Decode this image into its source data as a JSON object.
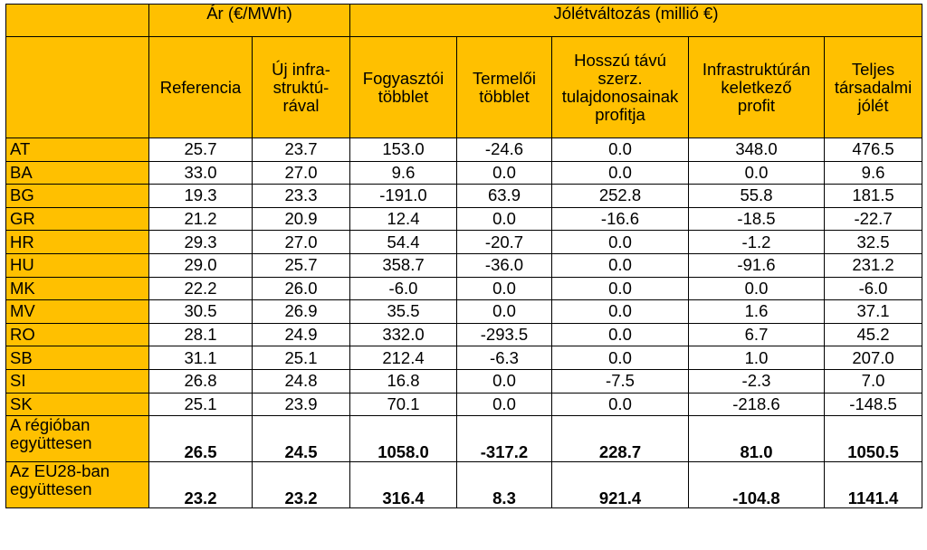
{
  "group_headers": {
    "price": "Ár (€/MWh)",
    "welfare": "Jólétváltozás (millió €)"
  },
  "column_headers": [
    "Referencia",
    "Új infra-\nstruktú-\nrával",
    "Fogyasztói\ntöbblet",
    "Termelői\ntöbblet",
    "Hosszú távú\nszerz.\ntulajdonosainak\nprofitja",
    "Infrastruktúrán\nkeletkező\nprofit",
    "Teljes\ntársadalmi\njólét"
  ],
  "rows": [
    {
      "label": "AT",
      "values": [
        "25.7",
        "23.7",
        "153.0",
        "-24.6",
        "0.0",
        "348.0",
        "476.5"
      ]
    },
    {
      "label": "BA",
      "values": [
        "33.0",
        "27.0",
        "9.6",
        "0.0",
        "0.0",
        "0.0",
        "9.6"
      ]
    },
    {
      "label": "BG",
      "values": [
        "19.3",
        "23.3",
        "-191.0",
        "63.9",
        "252.8",
        "55.8",
        "181.5"
      ]
    },
    {
      "label": "GR",
      "values": [
        "21.2",
        "20.9",
        "12.4",
        "0.0",
        "-16.6",
        "-18.5",
        "-22.7"
      ]
    },
    {
      "label": "HR",
      "values": [
        "29.3",
        "27.0",
        "54.4",
        "-20.7",
        "0.0",
        "-1.2",
        "32.5"
      ]
    },
    {
      "label": "HU",
      "values": [
        "29.0",
        "25.7",
        "358.7",
        "-36.0",
        "0.0",
        "-91.6",
        "231.2"
      ]
    },
    {
      "label": "MK",
      "values": [
        "22.2",
        "26.0",
        "-6.0",
        "0.0",
        "0.0",
        "0.0",
        "-6.0"
      ]
    },
    {
      "label": "MV",
      "values": [
        "30.5",
        "26.9",
        "35.5",
        "0.0",
        "0.0",
        "1.6",
        "37.1"
      ]
    },
    {
      "label": "RO",
      "values": [
        "28.1",
        "24.9",
        "332.0",
        "-293.5",
        "0.0",
        "6.7",
        "45.2"
      ]
    },
    {
      "label": "SB",
      "values": [
        "31.1",
        "25.1",
        "212.4",
        "-6.3",
        "0.0",
        "1.0",
        "207.0"
      ]
    },
    {
      "label": "SI",
      "values": [
        "26.8",
        "24.8",
        "16.8",
        "0.0",
        "-7.5",
        "-2.3",
        "7.0"
      ]
    },
    {
      "label": "SK",
      "values": [
        "25.1",
        "23.9",
        "70.1",
        "0.0",
        "0.0",
        "-218.6",
        "-148.5"
      ]
    }
  ],
  "summary_rows": [
    {
      "label": "A régióban\negyüttesen",
      "values": [
        "26.5",
        "24.5",
        "1058.0",
        "-317.2",
        "228.7",
        "81.0",
        "1050.5"
      ]
    },
    {
      "label": "Az EU28-ban\negyüttesen",
      "values": [
        "23.2",
        "23.2",
        "316.4",
        "8.3",
        "921.4",
        "-104.8",
        "1141.4"
      ]
    }
  ],
  "colors": {
    "header_fill": "#ffc000",
    "cell_fill": "#ffffff",
    "border": "#000000"
  }
}
